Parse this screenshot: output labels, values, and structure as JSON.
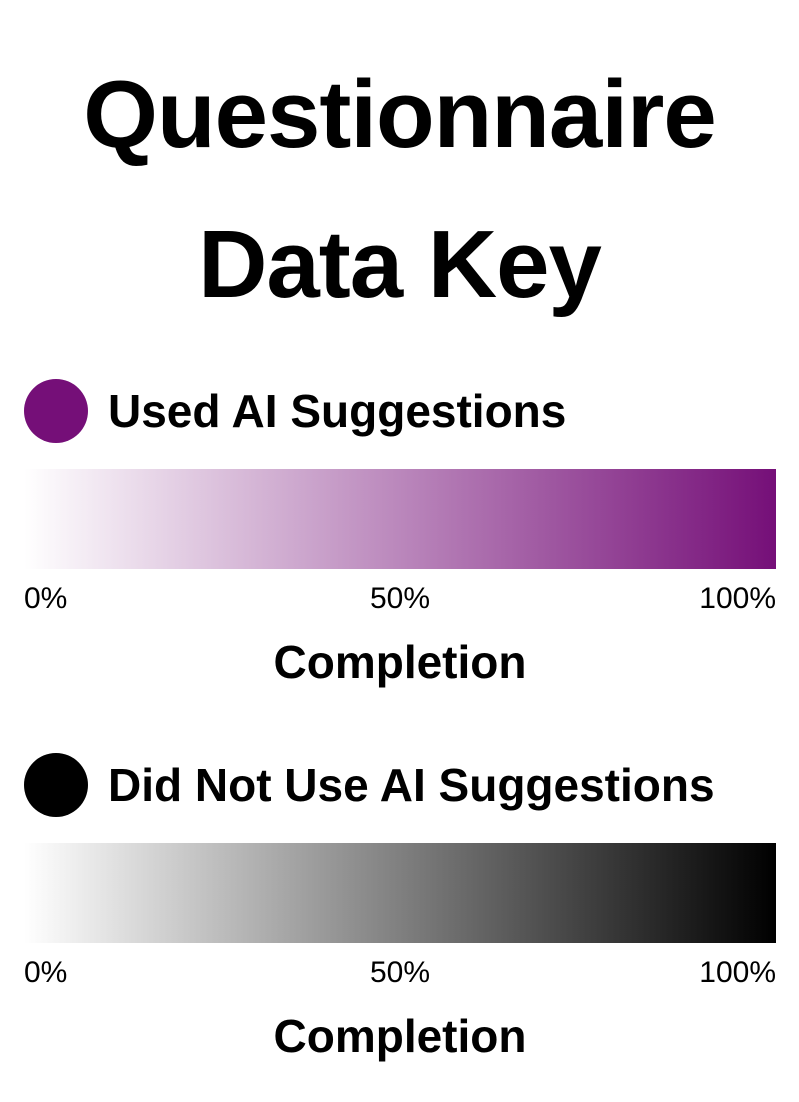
{
  "title": {
    "line1": "Questionnaire",
    "line2": "Data Key"
  },
  "legends": [
    {
      "label": "Used AI Suggestions",
      "color": "#750f78",
      "gradient_start": "#ffffff",
      "gradient_end": "#750f78",
      "ticks": [
        "0%",
        "50%",
        "100%"
      ],
      "axis_label": "Completion"
    },
    {
      "label": "Did Not Use AI Suggestions",
      "color": "#000000",
      "gradient_start": "#ffffff",
      "gradient_end": "#000000",
      "ticks": [
        "0%",
        "50%",
        "100%"
      ],
      "axis_label": "Completion"
    }
  ]
}
